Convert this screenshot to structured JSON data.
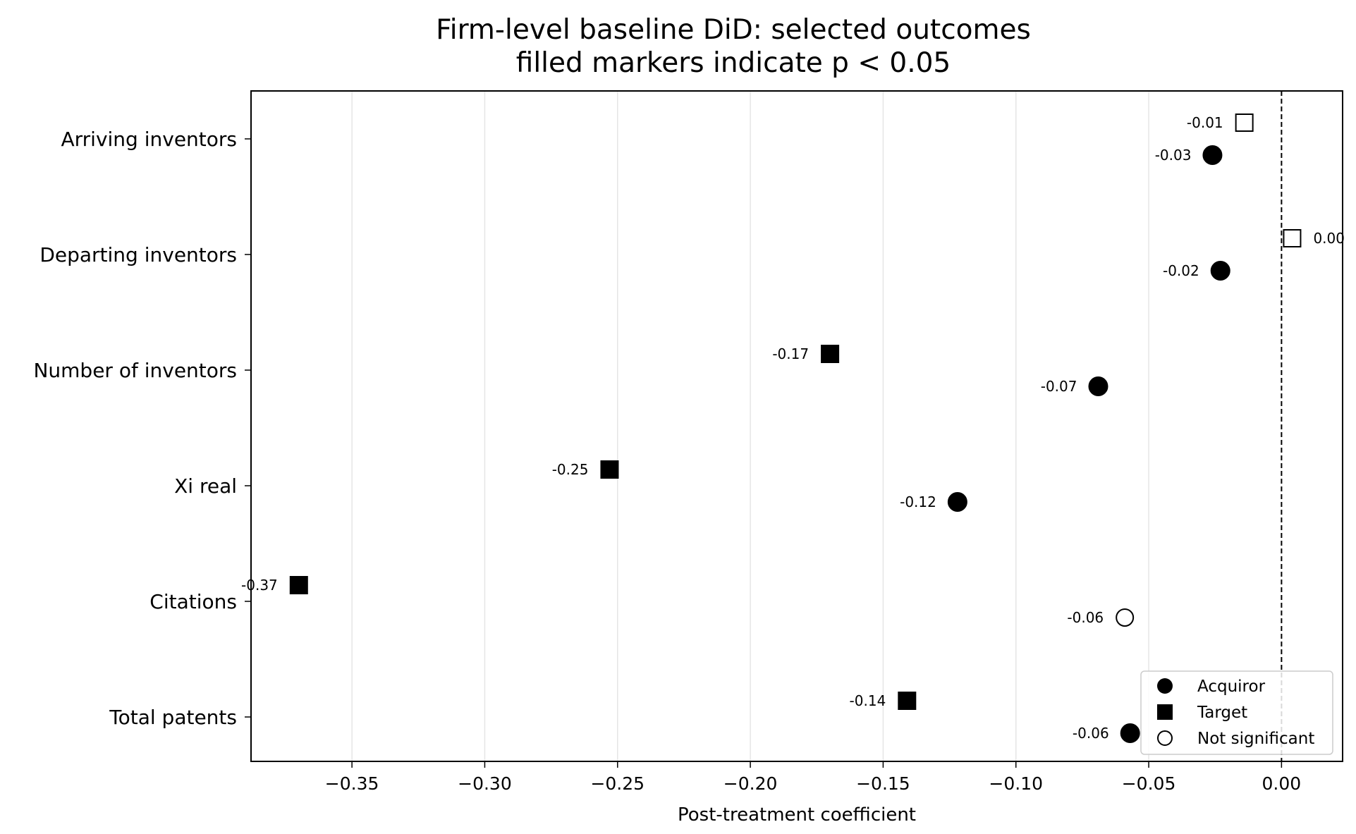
{
  "chart_data": {
    "type": "scatter",
    "title": "Firm-level baseline DiD: selected outcomes",
    "subtitle": "filled markers indicate p < 0.05",
    "xlabel": "Post-treatment coefficient",
    "ylabel": "",
    "xlim": [
      -0.388,
      0.023
    ],
    "xticks": [
      -0.35,
      -0.3,
      -0.25,
      -0.2,
      -0.15,
      -0.1,
      -0.05,
      0.0
    ],
    "xtick_labels": [
      "−0.35",
      "−0.30",
      "−0.25",
      "−0.20",
      "−0.15",
      "−0.10",
      "−0.05",
      "0.00"
    ],
    "grid": "vertical",
    "zero_line": "dashed",
    "categories": [
      "Arriving inventors",
      "Departing inventors",
      "Number of inventors",
      "Xi real",
      "Citations",
      "Total patents"
    ],
    "series": [
      {
        "name": "Acquiror",
        "marker": "circle",
        "values": [
          -0.026,
          -0.023,
          -0.069,
          -0.122,
          -0.059,
          -0.057
        ],
        "labels": [
          "-0.03",
          "-0.02",
          "-0.07",
          "-0.12",
          "-0.06",
          "-0.06"
        ],
        "significant": [
          true,
          true,
          true,
          true,
          false,
          true
        ]
      },
      {
        "name": "Target",
        "marker": "square",
        "values": [
          -0.014,
          0.004,
          -0.17,
          -0.253,
          -0.37,
          -0.141
        ],
        "labels": [
          "-0.01",
          "0.00",
          "-0.17",
          "-0.25",
          "-0.37",
          "-0.14"
        ],
        "significant": [
          false,
          false,
          true,
          true,
          true,
          true
        ]
      }
    ],
    "legend": {
      "placement": "lower-right",
      "entries": [
        "Acquiror",
        "Target",
        "Not significant"
      ]
    },
    "colors": {
      "marker": "#000000",
      "grid": "#e5e5e5",
      "background": "#ffffff"
    }
  }
}
